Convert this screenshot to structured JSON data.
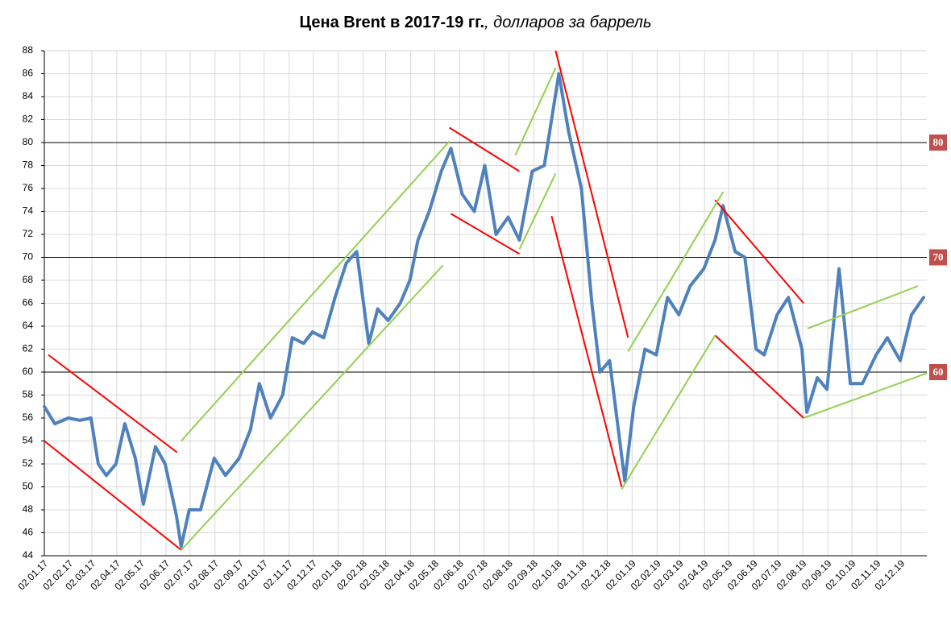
{
  "chart_data": {
    "type": "line",
    "title": "Цена Brent в 2017-19 гг.",
    "subtitle": ", долларов за баррель",
    "x": [
      "2017-01-02",
      "2017-01-15",
      "2017-02-01",
      "2017-02-15",
      "2017-03-01",
      "2017-03-10",
      "2017-03-20",
      "2017-04-01",
      "2017-04-12",
      "2017-04-25",
      "2017-05-05",
      "2017-05-20",
      "2017-06-01",
      "2017-06-15",
      "2017-06-21",
      "2017-07-01",
      "2017-07-15",
      "2017-08-01",
      "2017-08-15",
      "2017-09-01",
      "2017-09-15",
      "2017-09-26",
      "2017-10-10",
      "2017-10-25",
      "2017-11-06",
      "2017-11-20",
      "2017-12-01",
      "2017-12-15",
      "2017-12-29",
      "2018-01-12",
      "2018-01-25",
      "2018-02-09",
      "2018-02-20",
      "2018-03-05",
      "2018-03-20",
      "2018-04-01",
      "2018-04-11",
      "2018-04-25",
      "2018-05-10",
      "2018-05-22",
      "2018-06-05",
      "2018-06-20",
      "2018-07-03",
      "2018-07-17",
      "2018-08-01",
      "2018-08-15",
      "2018-08-31",
      "2018-09-15",
      "2018-10-03",
      "2018-10-15",
      "2018-10-31",
      "2018-11-13",
      "2018-11-23",
      "2018-12-05",
      "2018-12-24",
      "2019-01-04",
      "2019-01-18",
      "2019-02-01",
      "2019-02-15",
      "2019-03-01",
      "2019-03-15",
      "2019-04-01",
      "2019-04-15",
      "2019-04-25",
      "2019-05-10",
      "2019-05-22",
      "2019-06-05",
      "2019-06-15",
      "2019-07-01",
      "2019-07-15",
      "2019-08-01",
      "2019-08-07",
      "2019-08-20",
      "2019-09-01",
      "2019-09-16",
      "2019-09-30",
      "2019-10-15",
      "2019-11-01",
      "2019-11-15",
      "2019-12-01",
      "2019-12-15",
      "2019-12-30"
    ],
    "series": [
      {
        "color": "#4f81bd",
        "values": [
          57,
          55.5,
          56,
          55.8,
          56,
          52,
          51,
          52,
          55.5,
          52.5,
          48.5,
          53.5,
          52,
          47.5,
          44.8,
          48,
          48,
          52.5,
          51,
          52.5,
          55,
          59,
          56,
          58,
          63,
          62.5,
          63.5,
          63,
          66.5,
          69.5,
          70.5,
          62.5,
          65.5,
          64.5,
          66,
          68,
          71.5,
          74,
          77.5,
          79.5,
          75.5,
          74,
          78,
          72,
          73.5,
          71.5,
          77.5,
          78,
          86,
          81,
          76,
          66,
          60,
          61,
          50.5,
          57,
          62,
          61.5,
          66.5,
          65,
          67.5,
          69,
          71.5,
          74.5,
          70.5,
          70,
          62,
          61.5,
          65,
          66.5,
          62,
          56.5,
          59.5,
          58.5,
          69,
          59,
          59,
          61.5,
          63,
          61,
          65,
          66.5
        ]
      }
    ],
    "xlim": [
      "2017-01-02",
      "2020-01-03"
    ],
    "ylim": [
      44,
      88
    ],
    "yticks": [
      44,
      46,
      48,
      50,
      52,
      54,
      56,
      58,
      60,
      62,
      64,
      66,
      68,
      70,
      72,
      74,
      76,
      78,
      80,
      82,
      84,
      86,
      88
    ],
    "xticks": [
      {
        "value": "2017-01-02",
        "label": "02.01.17"
      },
      {
        "value": "2017-02-02",
        "label": "02.02.17"
      },
      {
        "value": "2017-03-02",
        "label": "02.03.17"
      },
      {
        "value": "2017-04-02",
        "label": "02.04.17"
      },
      {
        "value": "2017-05-02",
        "label": "02.05.17"
      },
      {
        "value": "2017-06-02",
        "label": "02.06.17"
      },
      {
        "value": "2017-07-02",
        "label": "02.07.17"
      },
      {
        "value": "2017-08-02",
        "label": "02.08.17"
      },
      {
        "value": "2017-09-02",
        "label": "02.09.17"
      },
      {
        "value": "2017-10-02",
        "label": "02.10.17"
      },
      {
        "value": "2017-11-02",
        "label": "02.11.17"
      },
      {
        "value": "2017-12-02",
        "label": "02.12.17"
      },
      {
        "value": "2018-01-02",
        "label": "02.01.18"
      },
      {
        "value": "2018-02-02",
        "label": "02.02.18"
      },
      {
        "value": "2018-03-02",
        "label": "02.03.18"
      },
      {
        "value": "2018-04-02",
        "label": "02.04.18"
      },
      {
        "value": "2018-05-02",
        "label": "02.05.18"
      },
      {
        "value": "2018-06-02",
        "label": "02.06.18"
      },
      {
        "value": "2018-07-02",
        "label": "02.07.18"
      },
      {
        "value": "2018-08-02",
        "label": "02.08.18"
      },
      {
        "value": "2018-09-02",
        "label": "02.09.18"
      },
      {
        "value": "2018-10-02",
        "label": "02.10.18"
      },
      {
        "value": "2018-11-02",
        "label": "02.11.18"
      },
      {
        "value": "2018-12-02",
        "label": "02.12.18"
      },
      {
        "value": "2019-01-02",
        "label": "02.01.19"
      },
      {
        "value": "2019-02-02",
        "label": "02.02.19"
      },
      {
        "value": "2019-03-02",
        "label": "02.03.19"
      },
      {
        "value": "2019-04-02",
        "label": "02.04.19"
      },
      {
        "value": "2019-05-02",
        "label": "02.05.19"
      },
      {
        "value": "2019-06-02",
        "label": "02.06.19"
      },
      {
        "value": "2019-07-02",
        "label": "02.07.19"
      },
      {
        "value": "2019-08-02",
        "label": "02.08.19"
      },
      {
        "value": "2019-09-02",
        "label": "02.09.19"
      },
      {
        "value": "2019-10-02",
        "label": "02.10.19"
      },
      {
        "value": "2019-11-02",
        "label": "02.11.19"
      },
      {
        "value": "2019-12-02",
        "label": "02.12.19"
      }
    ],
    "grid": true,
    "reference_lines": [
      80,
      70,
      60
    ],
    "reference_color": "#c0504d",
    "trend_lines": [
      {
        "color": "#ff0000",
        "x": [
          "2017-01-02",
          "2017-06-21"
        ],
        "y": [
          54,
          44.5
        ]
      },
      {
        "color": "#ff0000",
        "x": [
          "2017-01-07",
          "2017-06-16"
        ],
        "y": [
          61.5,
          53
        ]
      },
      {
        "color": "#ff0000",
        "x": [
          "2018-05-20",
          "2018-08-15"
        ],
        "y": [
          81.3,
          77.5
        ]
      },
      {
        "color": "#ff0000",
        "x": [
          "2018-05-22",
          "2018-08-15"
        ],
        "y": [
          73.8,
          70.3
        ]
      },
      {
        "color": "#ff0000",
        "x": [
          "2018-09-29",
          "2018-12-28"
        ],
        "y": [
          88,
          63
        ]
      },
      {
        "color": "#ff0000",
        "x": [
          "2018-09-24",
          "2018-12-20"
        ],
        "y": [
          73.6,
          50
        ]
      },
      {
        "color": "#ff0000",
        "x": [
          "2019-04-15",
          "2019-08-03"
        ],
        "y": [
          75,
          66
        ]
      },
      {
        "color": "#ff0000",
        "x": [
          "2019-04-15",
          "2019-08-03"
        ],
        "y": [
          63.2,
          56
        ]
      },
      {
        "color": "#92d050",
        "x": [
          "2017-06-21",
          "2018-05-20"
        ],
        "y": [
          54,
          80.1
        ]
      },
      {
        "color": "#92d050",
        "x": [
          "2017-06-21",
          "2018-05-12"
        ],
        "y": [
          44.5,
          69.3
        ]
      },
      {
        "color": "#92d050",
        "x": [
          "2018-08-10",
          "2018-09-29"
        ],
        "y": [
          78.9,
          86.5
        ]
      },
      {
        "color": "#92d050",
        "x": [
          "2018-08-15",
          "2018-09-29"
        ],
        "y": [
          70.7,
          77.3
        ]
      },
      {
        "color": "#92d050",
        "x": [
          "2018-12-28",
          "2019-04-25"
        ],
        "y": [
          61.8,
          75.7
        ]
      },
      {
        "color": "#92d050",
        "x": [
          "2018-12-20",
          "2019-04-15"
        ],
        "y": [
          49.8,
          63.2
        ]
      },
      {
        "color": "#92d050",
        "x": [
          "2019-08-08",
          "2019-12-23"
        ],
        "y": [
          63.8,
          67.5
        ]
      },
      {
        "color": "#92d050",
        "x": [
          "2019-08-03",
          "2020-01-03"
        ],
        "y": [
          56,
          59.9
        ]
      }
    ]
  }
}
